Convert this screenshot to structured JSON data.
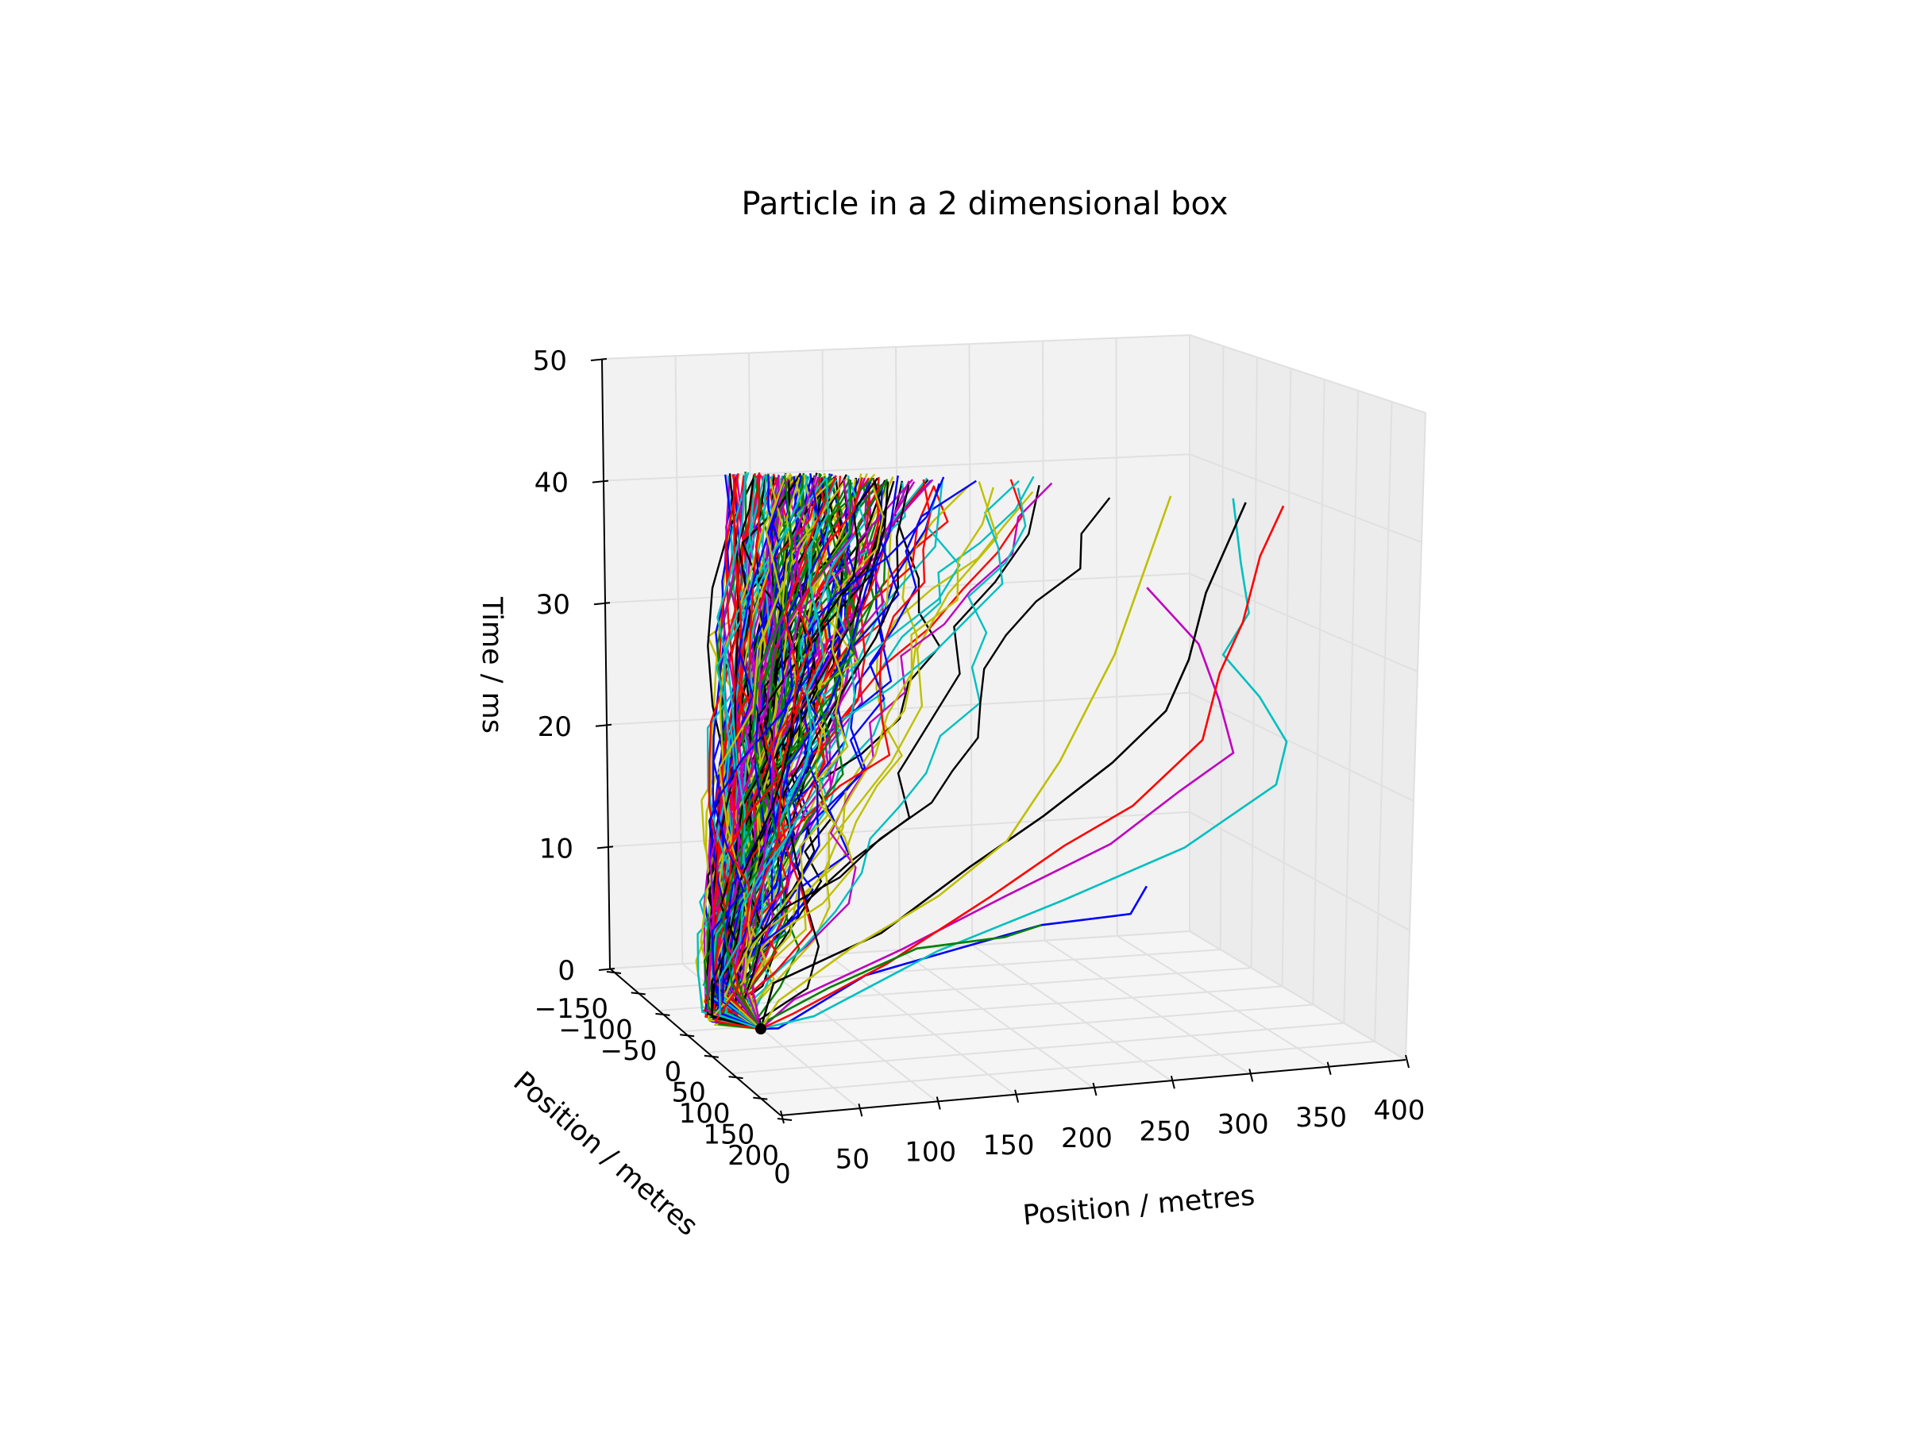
{
  "chart_data": {
    "type": "line",
    "projection": "3d",
    "title": "Particle in a 2 dimensional box",
    "xlabel": "Position / metres",
    "ylabel": "Position / metres",
    "zlabel": "Time / ms",
    "x_ticks": [
      "0",
      "50",
      "100",
      "150",
      "200",
      "250",
      "300",
      "350",
      "400"
    ],
    "y_ticks": [
      "−150",
      "−100",
      "−50",
      "0",
      "50",
      "100",
      "150",
      "200"
    ],
    "z_ticks": [
      "0",
      "10",
      "20",
      "30",
      "40",
      "50"
    ],
    "xlim": [
      0,
      400
    ],
    "ylim": [
      -150,
      200
    ],
    "zlim": [
      0,
      50
    ],
    "grid": true,
    "legend": "none",
    "series_colors": [
      "#0000ff",
      "#008000",
      "#ff0000",
      "#00bfbf",
      "#bf00bf",
      "#bfbf00",
      "#000000"
    ],
    "series_count": 200,
    "time_max": 42,
    "series": [
      {
        "name": "",
        "color": "#0000ff",
        "x": [
          0,
          40,
          90,
          140,
          190,
          240,
          250
        ],
        "y": [
          0,
          -20,
          -40,
          -60,
          -80,
          -100,
          -100
        ],
        "z": [
          0,
          2,
          6,
          8,
          10,
          11,
          13
        ]
      },
      {
        "name": "",
        "color": "#00bfbf",
        "x": [
          0,
          60,
          130,
          200,
          270,
          320,
          330,
          320,
          300,
          320,
          310,
          300
        ],
        "y": [
          0,
          -30,
          -60,
          -90,
          -110,
          -130,
          -120,
          -100,
          -90,
          -80,
          -90,
          -100
        ],
        "z": [
          0,
          3,
          8,
          12,
          16,
          21,
          24,
          27,
          30,
          33,
          37,
          42
        ]
      },
      {
        "name": "",
        "color": "#bf00bf",
        "x": [
          0,
          50,
          110,
          170,
          230,
          270,
          300,
          290,
          280,
          250
        ],
        "y": [
          0,
          -20,
          -50,
          -70,
          -90,
          -100,
          -110,
          -110,
          -100,
          -90
        ],
        "z": [
          0,
          4,
          8,
          12,
          16,
          20,
          23,
          27,
          31,
          35
        ]
      },
      {
        "name": "",
        "color": "#ff0000",
        "x": [
          0,
          50,
          100,
          160,
          200,
          240,
          280,
          290,
          300,
          310,
          320
        ],
        "y": [
          0,
          -20,
          -50,
          -70,
          -90,
          -100,
          -110,
          -110,
          -120,
          -120,
          -130
        ],
        "z": [
          0,
          3,
          7,
          12,
          16,
          19,
          24,
          29,
          33,
          38,
          42
        ]
      },
      {
        "name": "",
        "color": "#000000",
        "x": [
          0,
          40,
          100,
          150,
          190,
          230,
          260,
          270,
          280,
          300
        ],
        "y": [
          0,
          -10,
          -40,
          -60,
          -80,
          -90,
          -100,
          -110,
          -110,
          -120
        ],
        "z": [
          0,
          5,
          9,
          14,
          18,
          22,
          26,
          30,
          35,
          42
        ]
      },
      {
        "name": "",
        "color": "#008000",
        "x": [
          0,
          30,
          70,
          120,
          170,
          190
        ],
        "y": [
          0,
          -10,
          -30,
          -50,
          -70,
          -80
        ],
        "z": [
          0,
          2,
          5,
          8,
          9,
          10
        ]
      },
      {
        "name": "",
        "color": "#bfbf00",
        "x": [
          0,
          40,
          80,
          130,
          170,
          200,
          230,
          260
        ],
        "y": [
          0,
          -20,
          -40,
          -60,
          -70,
          -80,
          -90,
          -100
        ],
        "z": [
          0,
          4,
          8,
          12,
          16,
          22,
          30,
          42
        ]
      }
    ]
  }
}
